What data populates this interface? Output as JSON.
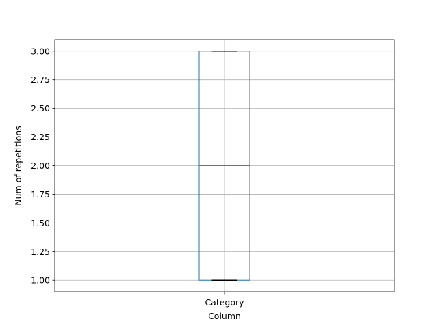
{
  "chart_data": {
    "type": "box",
    "title": "",
    "xlabel": "Column",
    "ylabel": "Num of repetitions",
    "categories": [
      "Category"
    ],
    "boxes": [
      {
        "category": "Category",
        "whisker_low": 1.0,
        "q1": 1.0,
        "median": 2.0,
        "q3": 3.0,
        "whisker_high": 3.0
      }
    ],
    "ylim": [
      0.9,
      3.1
    ],
    "yticks": [
      1.0,
      1.25,
      1.5,
      1.75,
      2.0,
      2.25,
      2.5,
      2.75,
      3.0
    ],
    "ytick_labels": [
      "1.00",
      "1.25",
      "1.50",
      "1.75",
      "2.00",
      "2.25",
      "2.50",
      "2.75",
      "3.00"
    ],
    "grid": true,
    "legend": "none",
    "colors": {
      "box": "#1f77b4",
      "median": "#2ca02c",
      "whisker_cap": "#000000",
      "grid": "#b0b0b0",
      "axes": "#000000"
    }
  }
}
